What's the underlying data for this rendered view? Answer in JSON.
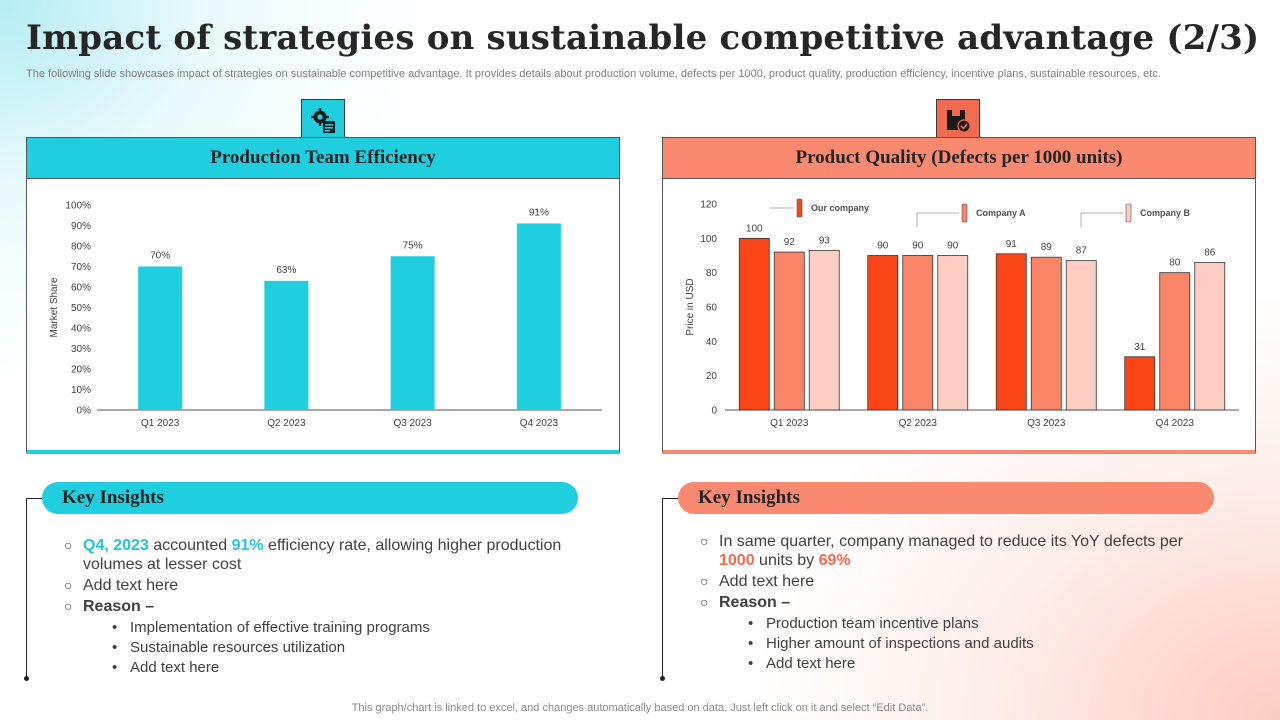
{
  "page": {
    "title": "Impact of strategies on sustainable competitive advantage (2/3)",
    "subtitle": "The following slide showcases impact of strategies on sustainable competitive advantage. It provides details about production volume, defects per 1000, product quality, production efficiency, incentive plans, sustainable resources, etc.",
    "footer": "This graph/chart is linked to excel,  and changes automatically based on data. Just left click on it and select “Edit Data”."
  },
  "colors": {
    "teal": "#1fcfe0",
    "coral": "#f98a6f",
    "our_company": "#fa4517",
    "company_a": "#fa8466",
    "company_b": "#fdcdc2"
  },
  "left_panel": {
    "header": "Production Team Efficiency",
    "icon": "efficiency-gear-icon"
  },
  "right_panel": {
    "header": "Product Quality (Defects per 1000 units)",
    "icon": "quality-badge-icon"
  },
  "chart_data": [
    {
      "type": "bar",
      "title": "Production Team Efficiency",
      "categories": [
        "Q1 2023",
        "Q2 2023",
        "Q3 2023",
        "Q4 2023"
      ],
      "values": [
        70,
        63,
        75,
        91
      ],
      "value_labels": [
        "70%",
        "63%",
        "75%",
        "91%"
      ],
      "xlabel": "",
      "ylabel": "Market Share",
      "ylim": [
        0,
        100
      ],
      "yticks": [
        "0%",
        "10%",
        "20%",
        "30%",
        "40%",
        "50%",
        "60%",
        "70%",
        "80%",
        "90%",
        "100%"
      ],
      "grid": false
    },
    {
      "type": "bar",
      "title": "Product Quality (Defects per 1000 units)",
      "categories": [
        "Q1 2023",
        "Q2 2023",
        "Q3 2023",
        "Q4 2023"
      ],
      "series": [
        {
          "name": "Our company",
          "values": [
            100,
            90,
            91,
            31
          ]
        },
        {
          "name": "Company A",
          "values": [
            92,
            90,
            89,
            80
          ]
        },
        {
          "name": "Company B",
          "values": [
            93,
            90,
            87,
            86
          ]
        }
      ],
      "xlabel": "",
      "ylabel": "Price in USD",
      "ylim": [
        0,
        120
      ],
      "yticks": [
        "0",
        "20",
        "40",
        "60",
        "80",
        "100",
        "120"
      ],
      "legend": "top, callouts",
      "grid": false
    }
  ],
  "left_insights": {
    "title": "Key Insights",
    "item1": {
      "hl1": "Q4, 2023",
      "t1": " accounted ",
      "hl2": "91%",
      "t2": " efficiency rate, allowing higher production volumes at lesser cost"
    },
    "item2": "Add text here",
    "reason_label": "Reason –",
    "reasons": [
      "Implementation of effective training programs",
      "Sustainable resources utilization",
      "Add text here"
    ]
  },
  "right_insights": {
    "title": "Key Insights",
    "item1": {
      "t1": "In same quarter, company managed to reduce its YoY defects per ",
      "hl1": "1000",
      "t2": " units by ",
      "hl2": "69%"
    },
    "item2": "Add text here",
    "reason_label": "Reason –",
    "reasons": [
      "Production team incentive plans",
      "Higher amount of inspections and audits",
      "Add text here"
    ]
  }
}
